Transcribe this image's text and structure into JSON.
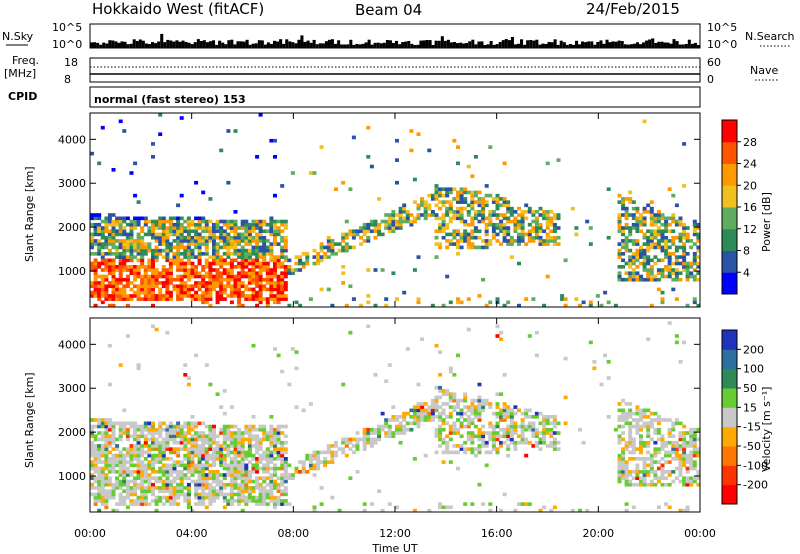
{
  "header": {
    "station": "Hokkaido West (fitACF)",
    "beam": "Beam 04",
    "date": "24/Feb/2015"
  },
  "noise_panel": {
    "left_label": "N.Sky",
    "left_top": "10^5",
    "left_bottom": "10^0",
    "right_label": "N.Search",
    "right_top": "10^5",
    "right_bottom": "10^0"
  },
  "freq_panel": {
    "left_label_1": "Freq.",
    "left_label_2": "[MHz]",
    "left_top": "18",
    "left_bottom": "8",
    "right_label": "Nave",
    "right_top": "60",
    "right_bottom": "0"
  },
  "cpid": {
    "label": "CPID",
    "value": "normal (fast stereo) 153"
  },
  "colors": {
    "power_scale": [
      "#0000ff",
      "#2a52a6",
      "#2e8b57",
      "#5fae5f",
      "#f0c020",
      "#ff9900",
      "#ff5500",
      "#ff0000"
    ],
    "velocity_scale": [
      "#2233bb",
      "#2e6fa0",
      "#2e8b57",
      "#66cc33",
      "#c8c8c8",
      "#ffaa00",
      "#ff7700",
      "#ff3300",
      "#ff0000"
    ]
  },
  "chart_data": [
    {
      "type": "heatmap",
      "quantity": "power",
      "ylabel": "Slant Range [km]",
      "xlabel": "Time UT",
      "y_ticks": [
        "1000",
        "2000",
        "3000",
        "4000"
      ],
      "ylim": [
        180,
        4600
      ],
      "x_ticks": [
        "00:00",
        "04:00",
        "08:00",
        "12:00",
        "16:00",
        "20:00",
        "00:00"
      ],
      "xlim_hours": [
        0,
        24
      ],
      "colorbar": {
        "label": "Power [dB]",
        "ticks": [
          "4",
          "8",
          "12",
          "16",
          "20",
          "24",
          "28"
        ]
      }
    },
    {
      "type": "heatmap",
      "quantity": "velocity",
      "ylabel": "Slant Range [km]",
      "xlabel": "Time UT",
      "y_ticks": [
        "1000",
        "2000",
        "3000",
        "4000"
      ],
      "ylim": [
        180,
        4600
      ],
      "x_ticks": [
        "00:00",
        "04:00",
        "08:00",
        "12:00",
        "16:00",
        "20:00",
        "00:00"
      ],
      "xlim_hours": [
        0,
        24
      ],
      "colorbar": {
        "label": "Velocity [m s⁻¹]",
        "ticks": [
          "200",
          "100",
          "50",
          "15",
          "-15",
          "-50",
          "-100",
          "-200"
        ]
      }
    }
  ],
  "xaxis_title": "Time UT"
}
